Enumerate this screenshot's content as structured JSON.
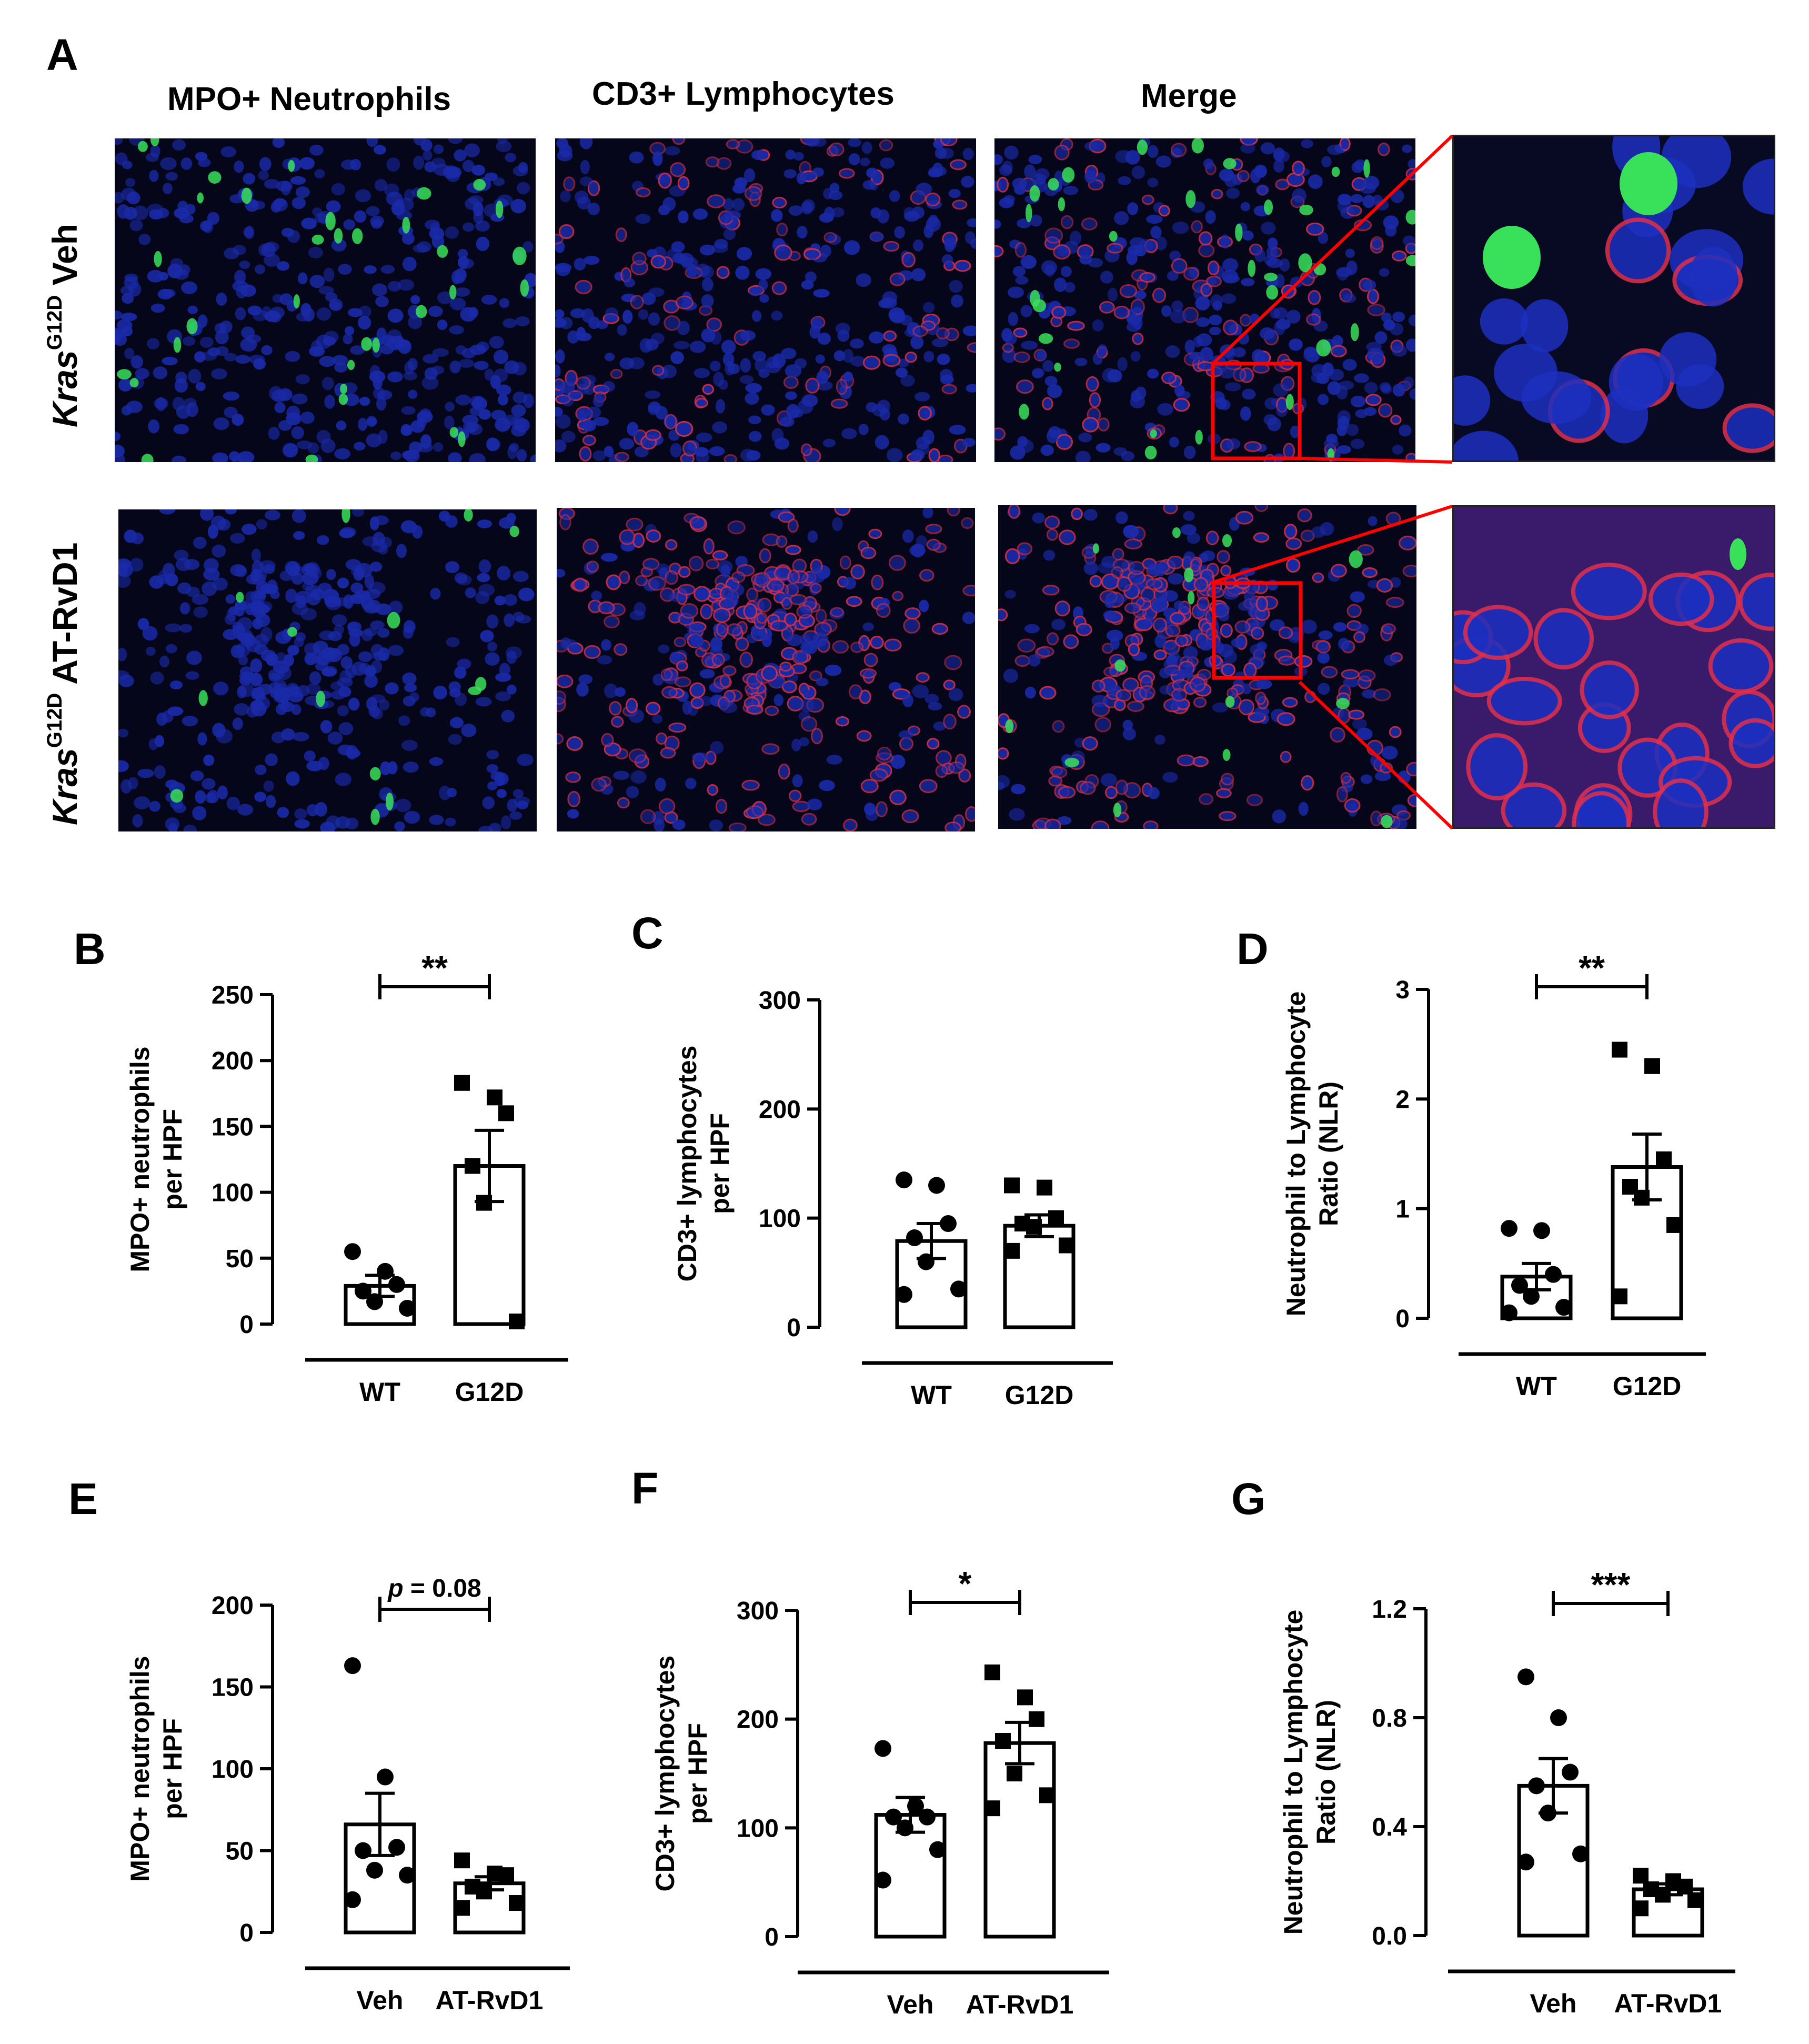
{
  "panel_A": {
    "letter": "A",
    "col_headers": [
      "MPO+ Neutrophils",
      "CD3+ Lymphocytes",
      "Merge"
    ],
    "row_labels": [
      {
        "gene": "Kras",
        "sup": "G12D",
        "treatment": "Veh"
      },
      {
        "gene": "Kras",
        "sup": "G12D",
        "treatment": "AT-RvD1"
      }
    ],
    "colors": {
      "nuclei": "#1a2aa8",
      "mpo": "#39e05a",
      "cd3": "#d0304a",
      "zoom_box": "#ff0000"
    }
  },
  "chart_data": [
    {
      "panel": "B",
      "type": "bar",
      "categories": [
        "WT",
        "G12D"
      ],
      "ylabel": [
        "MPO+ neutrophils",
        "per HPF"
      ],
      "ylim": [
        0,
        250
      ],
      "yticks": [
        0,
        50,
        100,
        150,
        200,
        250
      ],
      "means": [
        29,
        120
      ],
      "sem": [
        8,
        27
      ],
      "points": [
        [
          55,
          40,
          30,
          25,
          17,
          12
        ],
        [
          183,
          172,
          160,
          120,
          92,
          2
        ]
      ],
      "markers": [
        "circle",
        "square"
      ],
      "significance": "**"
    },
    {
      "panel": "C",
      "type": "bar",
      "categories": [
        "WT",
        "G12D"
      ],
      "ylabel": [
        "CD3+ lymphocytes",
        "per HPF"
      ],
      "ylim": [
        0,
        300
      ],
      "yticks": [
        0,
        100,
        200,
        300
      ],
      "means": [
        79,
        93
      ],
      "sem": [
        16,
        10
      ],
      "points": [
        [
          135,
          130,
          95,
          82,
          60,
          35,
          30
        ],
        [
          130,
          128,
          100,
          95,
          92,
          75,
          70
        ]
      ],
      "markers": [
        "circle",
        "square"
      ],
      "significance": ""
    },
    {
      "panel": "D",
      "type": "bar",
      "categories": [
        "WT",
        "G12D"
      ],
      "ylabel": [
        "Neutrophil to Lymphocyte",
        "Ratio (NLR)"
      ],
      "ylim": [
        0,
        3
      ],
      "yticks": [
        "0",
        "1",
        "2",
        "3"
      ],
      "means": [
        0.38,
        1.38
      ],
      "sem": [
        0.12,
        0.3
      ],
      "points": [
        [
          0.82,
          0.8,
          0.4,
          0.3,
          0.2,
          0.1,
          0.05
        ],
        [
          2.45,
          2.3,
          1.45,
          1.2,
          1.1,
          0.85,
          0.2
        ]
      ],
      "markers": [
        "circle",
        "square"
      ],
      "significance": "**"
    },
    {
      "panel": "E",
      "type": "bar",
      "categories": [
        "Veh",
        "AT-RvD1"
      ],
      "ylabel": [
        "MPO+ neutrophils",
        "per HPF"
      ],
      "ylim": [
        0,
        200
      ],
      "yticks": [
        0,
        50,
        100,
        150,
        200
      ],
      "means": [
        66,
        30
      ],
      "sem": [
        19,
        4
      ],
      "points": [
        [
          163,
          95,
          52,
          50,
          38,
          35,
          20
        ],
        [
          44,
          36,
          35,
          28,
          25,
          18,
          15
        ]
      ],
      "markers": [
        "circle",
        "square"
      ],
      "significance": "p = 0.08"
    },
    {
      "panel": "F",
      "type": "bar",
      "categories": [
        "Veh",
        "AT-RvD1"
      ],
      "ylabel": [
        "CD3+ lymphocytes",
        "per HPF"
      ],
      "ylim": [
        0,
        300
      ],
      "yticks": [
        0,
        100,
        200,
        300
      ],
      "means": [
        112,
        178
      ],
      "sem": [
        16,
        19
      ],
      "points": [
        [
          173,
          120,
          110,
          110,
          100,
          80,
          52
        ],
        [
          243,
          220,
          200,
          180,
          150,
          130,
          118
        ]
      ],
      "markers": [
        "circle",
        "square"
      ],
      "significance": "*"
    },
    {
      "panel": "G",
      "type": "bar",
      "categories": [
        "Veh",
        "AT-RvD1"
      ],
      "ylabel": [
        "Neutrophil to Lymphocyte",
        "Ratio (NLR)"
      ],
      "ylim": [
        0,
        1.2
      ],
      "yticks": [
        "0.0",
        "0.4",
        "0.8",
        "1.2"
      ],
      "means": [
        0.55,
        0.17
      ],
      "sem": [
        0.1,
        0.02
      ],
      "points": [
        [
          0.95,
          0.8,
          0.6,
          0.55,
          0.45,
          0.3,
          0.27
        ],
        [
          0.22,
          0.2,
          0.18,
          0.17,
          0.15,
          0.13,
          0.1
        ]
      ],
      "markers": [
        "circle",
        "square"
      ],
      "significance": "***"
    }
  ]
}
